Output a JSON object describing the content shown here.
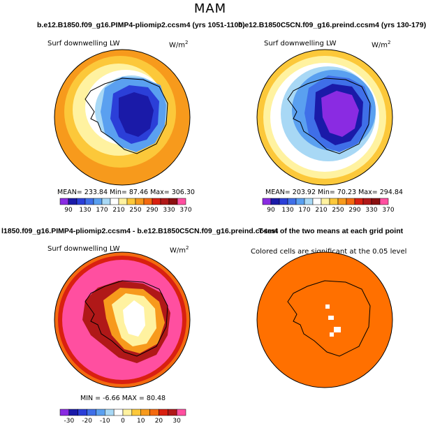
{
  "season": "MAM",
  "panels": [
    {
      "title": "b.e12.B1850.f09_g16.PIMP4-pliomip2.ccsm4 (yrs 1051-1100)",
      "variable": "Surf downwelling LW",
      "units_base": "W/m",
      "units_exp": "2",
      "stats": "MEAN= 233.84   Min=  87.46   Max= 306.30",
      "colorbar": {
        "labels": [
          "90",
          "130",
          "170",
          "210",
          "250",
          "290",
          "330",
          "370"
        ],
        "colors": [
          "#8a2be2",
          "#1a1aa8",
          "#2b3fd8",
          "#3f6fe8",
          "#5aa0f0",
          "#a8d8f5",
          "#ffffff",
          "#fff2a0",
          "#fcc83a",
          "#f79a1c",
          "#f46a10",
          "#d92010",
          "#b01818",
          "#8b1010",
          "#ff4fa0"
        ]
      }
    },
    {
      "title": "b.e12.B1850C5CN.f09_g16.preind.ccsm4 (yrs 130-179)",
      "variable": "Surf downwelling LW",
      "units_base": "W/m",
      "units_exp": "2",
      "stats": "MEAN= 203.92   Min=  70.23   Max= 294.84",
      "colorbar": {
        "labels": [
          "90",
          "130",
          "170",
          "210",
          "250",
          "290",
          "330",
          "370"
        ],
        "colors": [
          "#8a2be2",
          "#1a1aa8",
          "#2b3fd8",
          "#3f6fe8",
          "#5aa0f0",
          "#a8d8f5",
          "#ffffff",
          "#fff2a0",
          "#fcc83a",
          "#f79a1c",
          "#f46a10",
          "#d92010",
          "#b01818",
          "#8b1010",
          "#ff4fa0"
        ]
      }
    },
    {
      "title": "l1850.f09_g16.PIMP4-pliomip2.ccsm4 - b.e12.B1850C5CN.f09_g16.preind.ccsm4",
      "variable": "Surf downwelling LW",
      "units_base": "W/m",
      "units_exp": "2",
      "stats": "MIN =   -6.66  MAX =   80.48",
      "colorbar": {
        "labels": [
          "-30",
          "-20",
          "-10",
          "0",
          "10",
          "20",
          "30"
        ],
        "colors": [
          "#8a2be2",
          "#1a1aa8",
          "#2b3fd8",
          "#3f6fe8",
          "#5aa0f0",
          "#a8d8f5",
          "#ffffff",
          "#fff2a0",
          "#fcc83a",
          "#f79a1c",
          "#f46a10",
          "#d92010",
          "#b01818",
          "#ff4fa0"
        ]
      }
    },
    {
      "title": "T-test of the two means at each grid point",
      "subtitle": "Colored cells are significant at the 0.05 level",
      "significance_color": "#ff7000"
    }
  ]
}
